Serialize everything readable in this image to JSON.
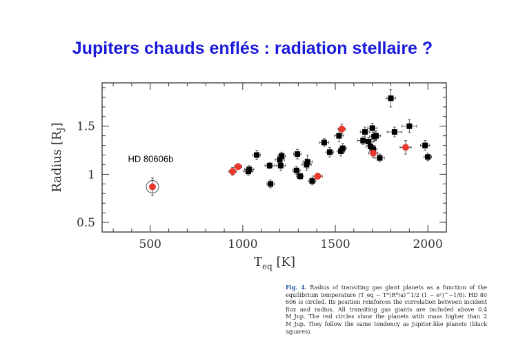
{
  "slide": {
    "title": "Jupiters chauds enflés : radiation stellaire ?"
  },
  "caption": {
    "fig_label": "Fig. 4.",
    "text": "Radius of transiting gas giant planets as a function of the equilibrium temperature (T_eq ~ T*(R*/a)^1/2 (1 − e²)^−1/8). HD 80 606 is circled. Its position reinforces the correlation between incident flux and radius. All transiting gas giants are included above 0.4 M_Jup. The red circles show the planets with mass higher than 2 M_Jup. They follow the same tendency as Jupiter-like planets (black squares)."
  },
  "chart_data": {
    "type": "scatter",
    "title": "",
    "xlabel": "T_eq [K]",
    "ylabel": "Radius [R_J]",
    "xlim": [
      240,
      2100
    ],
    "ylim": [
      0.4,
      1.95
    ],
    "xticks": [
      500,
      1000,
      1500,
      2000
    ],
    "yticks": [
      0.5,
      1,
      1.5
    ],
    "xtick_labels": [
      "500",
      "1000",
      "1500",
      "2000"
    ],
    "ytick_labels": [
      "0.5",
      "1",
      "1.5"
    ],
    "grid": false,
    "annotations": [
      {
        "text": "HD 80606b",
        "x": 380,
        "y": 1.13
      }
    ],
    "series": [
      {
        "marker": "square",
        "color": "#000000",
        "points": [
          {
            "x": 1030,
            "y": 1.03,
            "ex": 25,
            "ey": 0.04
          },
          {
            "x": 1035,
            "y": 1.05,
            "ex": 25,
            "ey": 0.04
          },
          {
            "x": 1075,
            "y": 1.2,
            "ex": 20,
            "ey": 0.05
          },
          {
            "x": 1145,
            "y": 1.09,
            "ex": 25,
            "ey": 0.03
          },
          {
            "x": 1150,
            "y": 0.9,
            "ex": 20,
            "ey": 0.04
          },
          {
            "x": 1200,
            "y": 1.15,
            "ex": 25,
            "ey": 0.05
          },
          {
            "x": 1210,
            "y": 1.19,
            "ex": 20,
            "ey": 0.04
          },
          {
            "x": 1205,
            "y": 1.09,
            "ex": 25,
            "ey": 0.05
          },
          {
            "x": 1290,
            "y": 1.04,
            "ex": 20,
            "ey": 0.04
          },
          {
            "x": 1295,
            "y": 1.21,
            "ex": 20,
            "ey": 0.05
          },
          {
            "x": 1310,
            "y": 0.98,
            "ex": 20,
            "ey": 0.03
          },
          {
            "x": 1345,
            "y": 1.1,
            "ex": 25,
            "ey": 0.06
          },
          {
            "x": 1350,
            "y": 1.13,
            "ex": 25,
            "ey": 0.07
          },
          {
            "x": 1375,
            "y": 0.93,
            "ex": 20,
            "ey": 0.04
          },
          {
            "x": 1440,
            "y": 1.33,
            "ex": 25,
            "ey": 0.04
          },
          {
            "x": 1470,
            "y": 1.23,
            "ex": 20,
            "ey": 0.05
          },
          {
            "x": 1530,
            "y": 1.24,
            "ex": 20,
            "ey": 0.05
          },
          {
            "x": 1520,
            "y": 1.4,
            "ex": 25,
            "ey": 0.06
          },
          {
            "x": 1540,
            "y": 1.27,
            "ex": 20,
            "ey": 0.05
          },
          {
            "x": 1650,
            "y": 1.35,
            "ex": 30,
            "ey": 0.04
          },
          {
            "x": 1660,
            "y": 1.44,
            "ex": 25,
            "ey": 0.05
          },
          {
            "x": 1680,
            "y": 1.34,
            "ex": 25,
            "ey": 0.04
          },
          {
            "x": 1690,
            "y": 1.29,
            "ex": 25,
            "ey": 0.05
          },
          {
            "x": 1700,
            "y": 1.48,
            "ex": 25,
            "ey": 0.05
          },
          {
            "x": 1710,
            "y": 1.39,
            "ex": 25,
            "ey": 0.05
          },
          {
            "x": 1705,
            "y": 1.26,
            "ex": 20,
            "ey": 0.04
          },
          {
            "x": 1720,
            "y": 1.4,
            "ex": 25,
            "ey": 0.05
          },
          {
            "x": 1740,
            "y": 1.17,
            "ex": 25,
            "ey": 0.04
          },
          {
            "x": 1800,
            "y": 1.79,
            "ex": 25,
            "ey": 0.09
          },
          {
            "x": 1820,
            "y": 1.44,
            "ex": 40,
            "ey": 0.05
          },
          {
            "x": 1900,
            "y": 1.5,
            "ex": 40,
            "ey": 0.07
          },
          {
            "x": 1985,
            "y": 1.3,
            "ex": 25,
            "ey": 0.05
          },
          {
            "x": 2000,
            "y": 1.18,
            "ex": 20,
            "ey": 0.04
          }
        ]
      },
      {
        "marker": "circle",
        "color": "#e8392f",
        "points": [
          {
            "x": 512,
            "y": 0.87,
            "ex": 15,
            "ey": 0.09
          },
          {
            "x": 945,
            "y": 1.03,
            "ex": 20,
            "ey": 0.04
          },
          {
            "x": 975,
            "y": 1.08,
            "ex": 20,
            "ey": 0.03
          },
          {
            "x": 1405,
            "y": 0.98,
            "ex": 25,
            "ey": 0.03
          },
          {
            "x": 1535,
            "y": 1.47,
            "ex": 20,
            "ey": 0.05
          },
          {
            "x": 1705,
            "y": 1.22,
            "ex": 25,
            "ey": 0.05
          },
          {
            "x": 1880,
            "y": 1.28,
            "ex": 30,
            "ey": 0.07
          }
        ]
      }
    ],
    "highlighted_point": {
      "x": 512,
      "y": 0.87,
      "label": "HD 80606b"
    }
  }
}
